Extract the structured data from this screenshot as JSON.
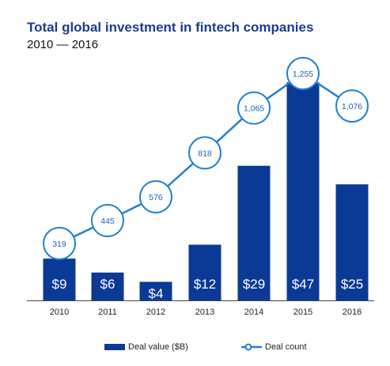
{
  "colors": {
    "bar": "#0a3a96",
    "line": "#1f7fd0",
    "title": "#1a3e8c",
    "bar_label": "#ffffff",
    "bubble_text": "#1f5fb0"
  },
  "chart_data": {
    "type": "bar",
    "title": "Total global investment in fintech companies",
    "subtitle": "2010 — 2016",
    "categories": [
      "2010",
      "2011",
      "2012",
      "2013",
      "2014",
      "2015",
      "2016"
    ],
    "series": [
      {
        "name": "Deal value ($B)",
        "type": "bar",
        "values": [
          9,
          6,
          4,
          12,
          29,
          47,
          25
        ],
        "labels": [
          "$9",
          "$6",
          "$4",
          "$12",
          "$29",
          "$47",
          "$25"
        ]
      },
      {
        "name": "Deal count",
        "type": "line",
        "values": [
          319,
          445,
          576,
          818,
          1065,
          1255,
          1076
        ],
        "labels": [
          "319",
          "445",
          "576",
          "818",
          "1,065",
          "1,255",
          "1,076"
        ]
      }
    ],
    "grid": false,
    "legend_position": "bottom"
  }
}
